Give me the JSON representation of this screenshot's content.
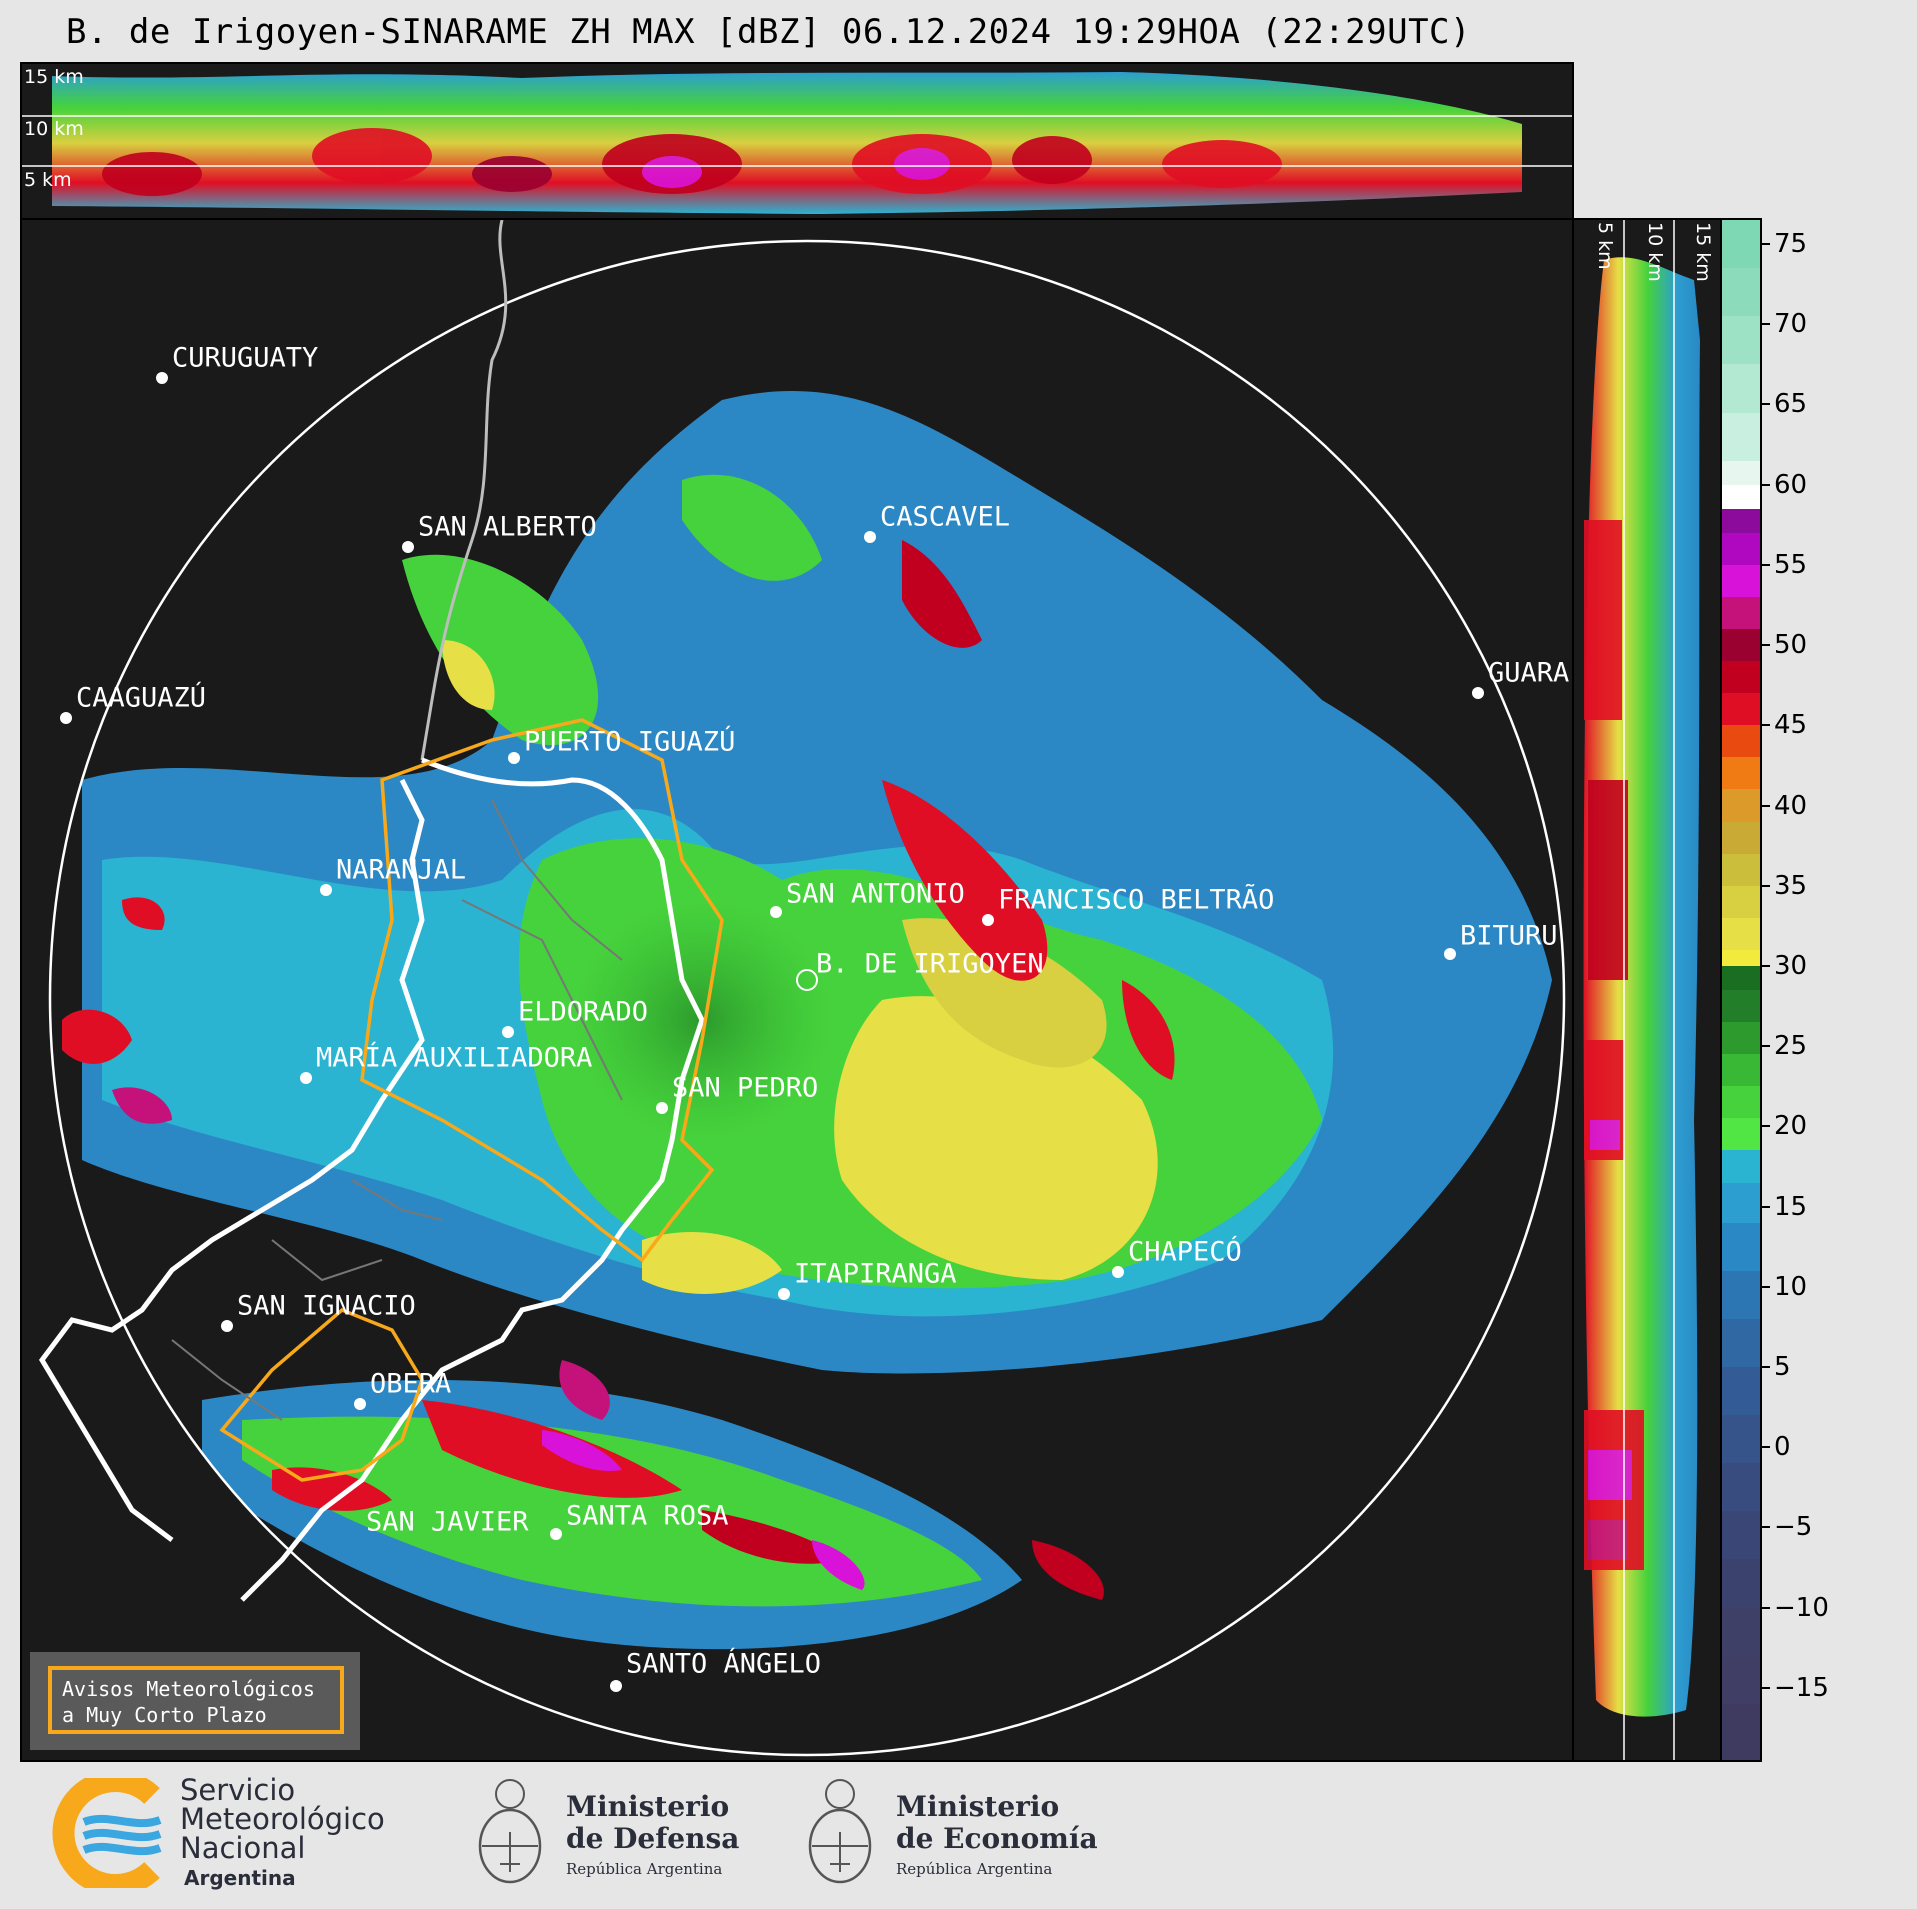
{
  "title": "B. de Irigoyen-SINARAME ZH MAX [dBZ] 06.12.2024 19:29HOA (22:29UTC)",
  "top_panel": {
    "height_labels": [
      "15 km",
      "10 km",
      "5 km"
    ]
  },
  "side_panel": {
    "height_labels": [
      "5 km",
      "10 km",
      "15 km"
    ]
  },
  "colorbar": {
    "unit": "dBZ",
    "ticks": [
      "75",
      "70",
      "65",
      "60",
      "55",
      "50",
      "45",
      "40",
      "35",
      "30",
      "25",
      "20",
      "15",
      "10",
      "5",
      "0",
      "−5",
      "−10",
      "−15"
    ],
    "tick_values": [
      75,
      70,
      65,
      60,
      55,
      50,
      45,
      40,
      35,
      30,
      25,
      20,
      15,
      10,
      5,
      0,
      -5,
      -10,
      -15
    ],
    "range": [
      -19.5,
      76.5
    ],
    "bands": [
      {
        "from": 73.5,
        "to": 76.5,
        "color": "#7fd8b4"
      },
      {
        "from": 70.5,
        "to": 73.5,
        "color": "#8cdcbc"
      },
      {
        "from": 67.5,
        "to": 70.5,
        "color": "#9ee2c6"
      },
      {
        "from": 64.5,
        "to": 67.5,
        "color": "#b3e8d2"
      },
      {
        "from": 61.5,
        "to": 64.5,
        "color": "#c8efdf"
      },
      {
        "from": 60.0,
        "to": 61.5,
        "color": "#e8f6f0"
      },
      {
        "from": 58.5,
        "to": 60.0,
        "color": "#ffffff"
      },
      {
        "from": 57.0,
        "to": 58.5,
        "color": "#8c0a9c"
      },
      {
        "from": 55.0,
        "to": 57.0,
        "color": "#b008c0"
      },
      {
        "from": 53.0,
        "to": 55.0,
        "color": "#d812d8"
      },
      {
        "from": 51.0,
        "to": 53.0,
        "color": "#c4127a"
      },
      {
        "from": 49.0,
        "to": 51.0,
        "color": "#9a0030"
      },
      {
        "from": 47.0,
        "to": 49.0,
        "color": "#c0001e"
      },
      {
        "from": 45.0,
        "to": 47.0,
        "color": "#e00e24"
      },
      {
        "from": 43.0,
        "to": 45.0,
        "color": "#e84a10"
      },
      {
        "from": 41.0,
        "to": 43.0,
        "color": "#f07a14"
      },
      {
        "from": 39.0,
        "to": 41.0,
        "color": "#dc9a2a"
      },
      {
        "from": 37.0,
        "to": 39.0,
        "color": "#c8aa34"
      },
      {
        "from": 35.0,
        "to": 37.0,
        "color": "#cabe3a"
      },
      {
        "from": 33.0,
        "to": 35.0,
        "color": "#d8d040"
      },
      {
        "from": 31.0,
        "to": 33.0,
        "color": "#e6e046"
      },
      {
        "from": 30.0,
        "to": 31.0,
        "color": "#f2ea3c"
      },
      {
        "from": 28.5,
        "to": 30.0,
        "color": "#1a6e22"
      },
      {
        "from": 26.5,
        "to": 28.5,
        "color": "#227e28"
      },
      {
        "from": 24.5,
        "to": 26.5,
        "color": "#2c9a2c"
      },
      {
        "from": 22.5,
        "to": 24.5,
        "color": "#38b834"
      },
      {
        "from": 20.5,
        "to": 22.5,
        "color": "#46d23c"
      },
      {
        "from": 18.5,
        "to": 20.5,
        "color": "#52e644"
      },
      {
        "from": 16.5,
        "to": 18.5,
        "color": "#2ab4d2"
      },
      {
        "from": 14.0,
        "to": 16.5,
        "color": "#2c9ed0"
      },
      {
        "from": 11.0,
        "to": 14.0,
        "color": "#2a88c4"
      },
      {
        "from": 8.0,
        "to": 11.0,
        "color": "#2c76b4"
      },
      {
        "from": 5.0,
        "to": 8.0,
        "color": "#3068a4"
      },
      {
        "from": 2.0,
        "to": 5.0,
        "color": "#335c96"
      },
      {
        "from": -1.0,
        "to": 2.0,
        "color": "#36548a"
      },
      {
        "from": -4.0,
        "to": -1.0,
        "color": "#384c80"
      },
      {
        "from": -7.0,
        "to": -4.0,
        "color": "#3a4676"
      },
      {
        "from": -10.0,
        "to": -7.0,
        "color": "#3c426e"
      },
      {
        "from": -13.0,
        "to": -10.0,
        "color": "#3e4068"
      },
      {
        "from": -16.0,
        "to": -13.0,
        "color": "#403e64"
      },
      {
        "from": -19.5,
        "to": -16.0,
        "color": "#3e3a60"
      }
    ]
  },
  "cities": [
    {
      "name": "CURUGUATY"
    },
    {
      "name": "SAN ALBERTO"
    },
    {
      "name": "CAAGUAZÚ"
    },
    {
      "name": "CASCAVEL"
    },
    {
      "name": "GUARA"
    },
    {
      "name": "PUERTO IGUAZÚ"
    },
    {
      "name": "NARANJAL"
    },
    {
      "name": "SAN ANTONIO"
    },
    {
      "name": "FRANCISCO BELTRÃO"
    },
    {
      "name": "B. DE IRIGOYEN"
    },
    {
      "name": "BITURU"
    },
    {
      "name": "ELDORADO"
    },
    {
      "name": "MARÍA AUXILIADORA"
    },
    {
      "name": "SAN PEDRO"
    },
    {
      "name": "ITAPIRANGA"
    },
    {
      "name": "CHAPECÓ"
    },
    {
      "name": "SAN IGNACIO"
    },
    {
      "name": "OBERÁ"
    },
    {
      "name": "SAN JAVIER"
    },
    {
      "name": "SANTA ROSA"
    },
    {
      "name": "SANTO ÁNGELO"
    }
  ],
  "legend": {
    "line1": "Avisos Meteorológicos",
    "line2": "a Muy Corto Plazo",
    "border_color": "#f7a81b"
  },
  "footer": {
    "smn": {
      "line1": "Servicio",
      "line2": "Meteorológico",
      "line3": "Nacional",
      "line4": "Argentina"
    },
    "defensa": {
      "line1": "Ministerio",
      "line2": "de Defensa",
      "line3": "República Argentina"
    },
    "economia": {
      "line1": "Ministerio",
      "line2": "de Economía",
      "line3": "República Argentina"
    }
  }
}
